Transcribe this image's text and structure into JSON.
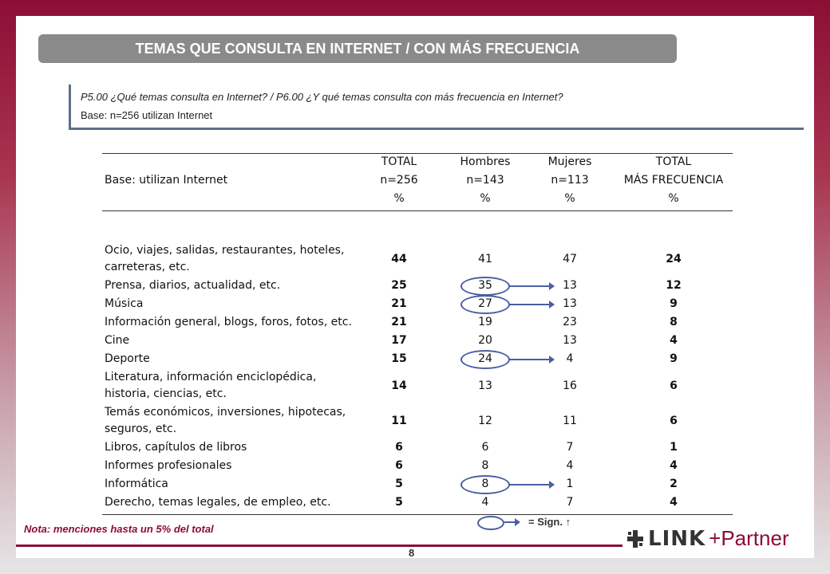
{
  "title": "TEMAS QUE CONSULTA EN INTERNET / CON MÁS FRECUENCIA",
  "question": "P5.00 ¿Qué temas consulta en Internet? / P6.00 ¿Y qué temas consulta con más frecuencia en Internet?",
  "base": "Base: n=256 utilizan Internet",
  "table": {
    "base_label": "Base: utilizan Internet",
    "columns": [
      {
        "line1": "TOTAL",
        "line2": "n=256",
        "line3": "%"
      },
      {
        "line1": "Hombres",
        "line2": "n=143",
        "line3": "%"
      },
      {
        "line1": "Mujeres",
        "line2": "n=113",
        "line3": "%"
      },
      {
        "line1": "TOTAL",
        "line2": "MÁS FRECUENCIA",
        "line3": "%"
      }
    ],
    "rows": [
      {
        "label": [
          "Ocio, viajes, salidas, restaurantes, hoteles,",
          "carreteras, etc."
        ],
        "total": "44",
        "hombres": "41",
        "mujeres": "47",
        "frecuencia": "24",
        "sig": false
      },
      {
        "label": [
          "Prensa, diarios, actualidad, etc."
        ],
        "total": "25",
        "hombres": "35",
        "mujeres": "13",
        "frecuencia": "12",
        "sig": true
      },
      {
        "label": [
          "Música"
        ],
        "total": "21",
        "hombres": "27",
        "mujeres": "13",
        "frecuencia": "9",
        "sig": true
      },
      {
        "label": [
          "Información general, blogs, foros, fotos, etc."
        ],
        "total": "21",
        "hombres": "19",
        "mujeres": "23",
        "frecuencia": "8",
        "sig": false
      },
      {
        "label": [
          "Cine"
        ],
        "total": "17",
        "hombres": "20",
        "mujeres": "13",
        "frecuencia": "4",
        "sig": false
      },
      {
        "label": [
          "Deporte"
        ],
        "total": "15",
        "hombres": "24",
        "mujeres": "4",
        "frecuencia": "9",
        "sig": true
      },
      {
        "label": [
          "Literatura, información enciclopédica,",
          "historia, ciencias, etc."
        ],
        "total": "14",
        "hombres": "13",
        "mujeres": "16",
        "frecuencia": "6",
        "sig": false
      },
      {
        "label": [
          "Temás económicos, inversiones, hipotecas,",
          "seguros, etc."
        ],
        "total": "11",
        "hombres": "12",
        "mujeres": "11",
        "frecuencia": "6",
        "sig": false
      },
      {
        "label": [
          "Libros, capítulos de libros"
        ],
        "total": "6",
        "hombres": "6",
        "mujeres": "7",
        "frecuencia": "1",
        "sig": false
      },
      {
        "label": [
          "Informes profesionales"
        ],
        "total": "6",
        "hombres": "8",
        "mujeres": "4",
        "frecuencia": "4",
        "sig": false
      },
      {
        "label": [
          "Informática"
        ],
        "total": "5",
        "hombres": "8",
        "mujeres": "1",
        "frecuencia": "2",
        "sig": true
      },
      {
        "label": [
          "Derecho, temas legales, de empleo, etc."
        ],
        "total": "5",
        "hombres": "4",
        "mujeres": "7",
        "frecuencia": "4",
        "sig": false
      }
    ]
  },
  "note": "Nota: menciones hasta un 5% del total",
  "legend": "= Sign. ↑",
  "page_number": "8",
  "logo": {
    "link": "LINK",
    "partner": "+Partner"
  },
  "colors": {
    "brand": "#8c0e35",
    "oval": "#4a5fa0",
    "title_bar": "#8a8a8a"
  }
}
